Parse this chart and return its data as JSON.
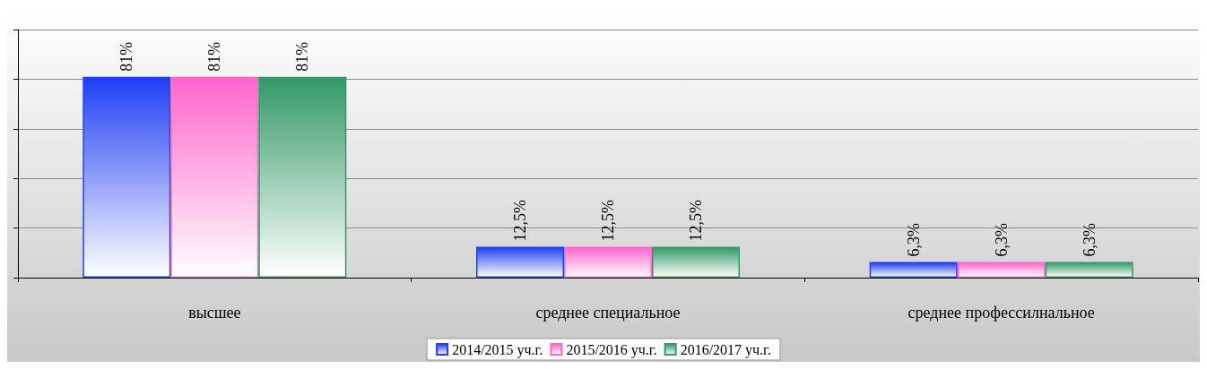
{
  "chart_data": {
    "type": "bar",
    "categories": [
      "высшее",
      "среднее специальное",
      "среднее профессилнальное"
    ],
    "series": [
      {
        "name": "2014/2015 уч.г.",
        "color": "#1f3ff5",
        "values": [
          81,
          12.5,
          6.3
        ],
        "value_labels": [
          "81%",
          "12,5%",
          "6,3%"
        ]
      },
      {
        "name": "2015/2016 уч.г.",
        "color": "#ff66cc",
        "values": [
          81,
          12.5,
          6.3
        ],
        "value_labels": [
          "81%",
          "12,5%",
          "6,3%"
        ]
      },
      {
        "name": "2016/2017 уч.г.",
        "color": "#339966",
        "values": [
          81,
          12.5,
          6.3
        ],
        "value_labels": [
          "81%",
          "12,5%",
          "6,3%"
        ]
      }
    ],
    "ylim": [
      0,
      100
    ],
    "yticks": [
      {
        "value": 0,
        "label": null
      },
      {
        "value": 20,
        "label": null
      },
      {
        "value": 40,
        "label": null
      },
      {
        "value": 60,
        "label": null
      },
      {
        "value": 80,
        "label": null
      },
      {
        "value": 100,
        "label": null
      }
    ],
    "grid": "y",
    "legend": "bottom",
    "tick_labels": "x"
  }
}
